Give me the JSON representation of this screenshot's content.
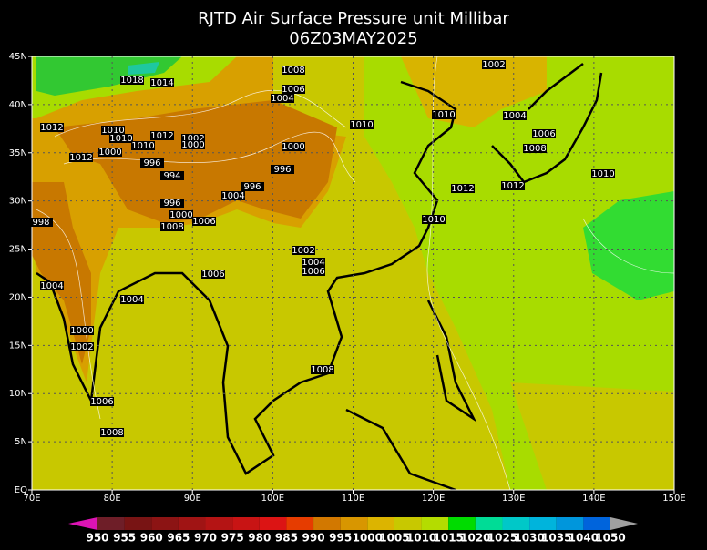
{
  "title": "RJTD Air Surface Pressure unit Millibar",
  "subtitle": "06Z03MAY2025",
  "lat_labels": [
    "45N",
    "40N",
    "35N",
    "30N",
    "25N",
    "20N",
    "15N",
    "10N",
    "5N",
    "EQ"
  ],
  "lon_labels": [
    "70E",
    "80E",
    "90E",
    "100E",
    "110E",
    "120E",
    "130E",
    "140E",
    "150E"
  ],
  "colorbar_labels": [
    "950",
    "955",
    "960",
    "965",
    "970",
    "975",
    "980",
    "985",
    "990",
    "995",
    "1000",
    "1005",
    "1010",
    "1015",
    "1020",
    "1025",
    "1030",
    "1035",
    "1040",
    "1050"
  ],
  "contour_labels": [
    "1018",
    "1014",
    "1008",
    "1002",
    "1006",
    "1004",
    "1010",
    "1010",
    "1004",
    "1012",
    "1010",
    "1010",
    "1010",
    "1012",
    "1002",
    "1000",
    "1000",
    "1006",
    "1008",
    "1012",
    "1000",
    "996",
    "994",
    "996",
    "1010",
    "996",
    "1004",
    "1012",
    "1012",
    "996",
    "1000",
    "1006",
    "1008",
    "1010",
    "998",
    "1002",
    "1004",
    "1006",
    "1006",
    "1004",
    "1004",
    "1000",
    "1002",
    "1008",
    "1006",
    "1008"
  ]
}
